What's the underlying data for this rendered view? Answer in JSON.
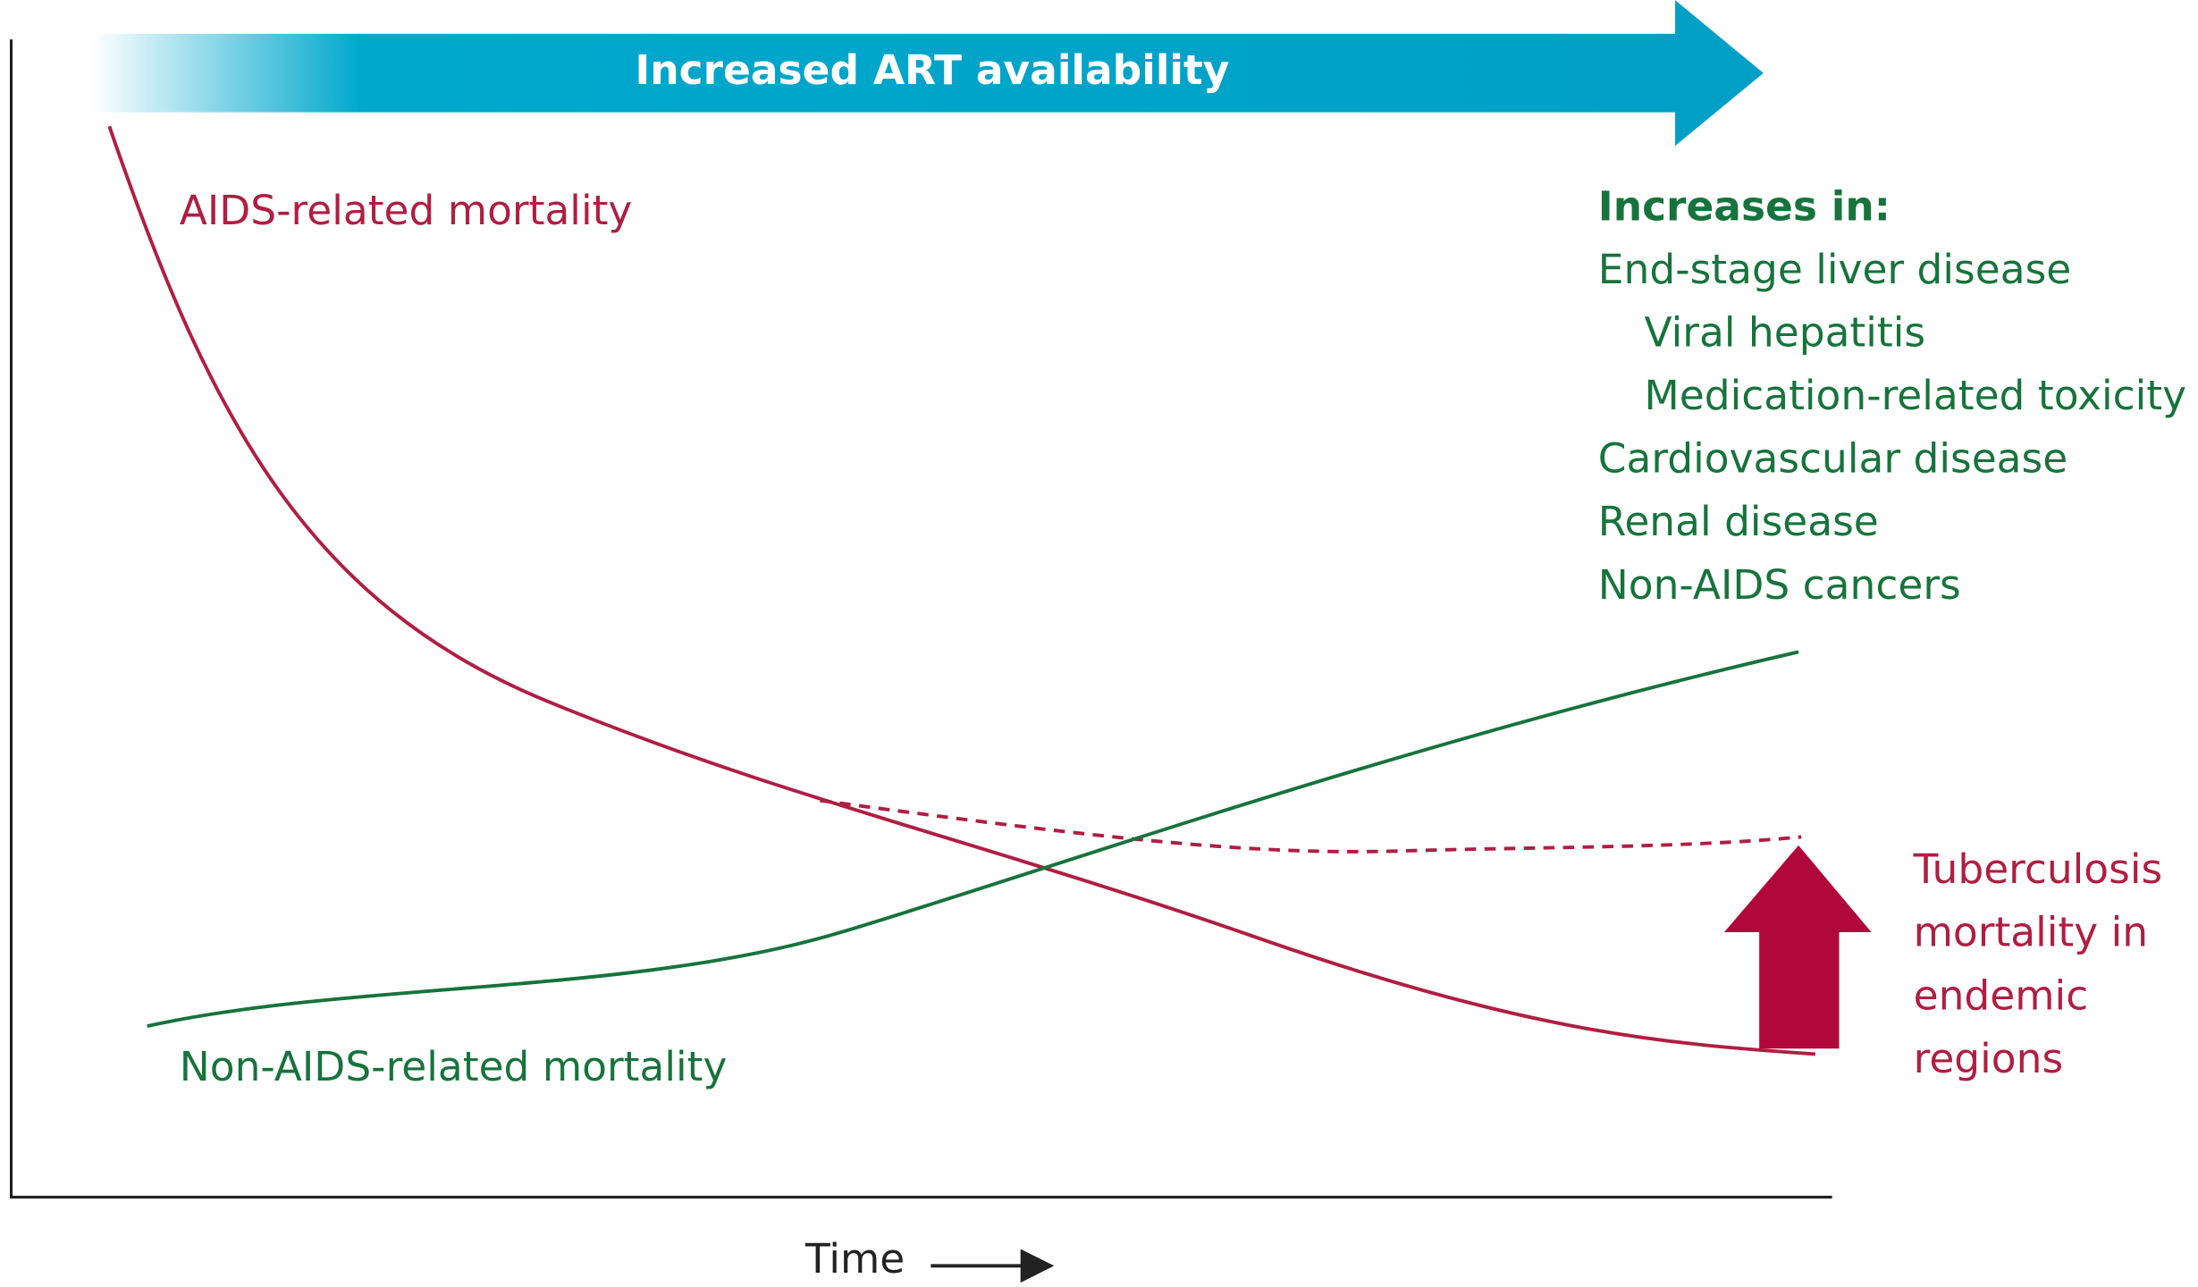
{
  "banner": "Increased ART availability",
  "curves": [
    {
      "label": "AIDS-related mortality"
    },
    {
      "label": "Non-AIDS-related mortality"
    }
  ],
  "increases": {
    "heading": "Increases in:",
    "items": [
      "End-stage liver disease",
      "Viral hepatitis",
      "Medication-related toxicity",
      "Cardiovascular disease",
      "Renal disease",
      "Non-AIDS cancers"
    ]
  },
  "tuberculosis": {
    "lines": [
      "Tuberculosis",
      "mortality in",
      "endemic",
      "regions"
    ]
  },
  "x_axis": "Time"
}
